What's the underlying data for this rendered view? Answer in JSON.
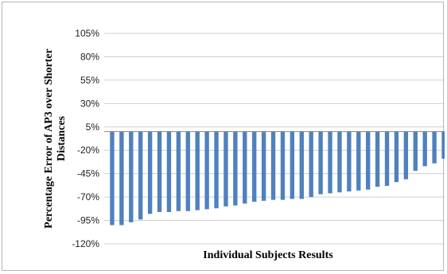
{
  "chart_data": {
    "type": "bar",
    "title": "",
    "xlabel": "Individual  Subjects Results",
    "ylabel": "Percentage Error of AP3 over Shorter Distances",
    "ylabel_lines": [
      "Percentage Error of AP3 over Shorter",
      "Distances"
    ],
    "ylim": [
      -120,
      105
    ],
    "yticks": [
      105,
      80,
      55,
      30,
      5,
      -20,
      -45,
      -70,
      -95,
      -120
    ],
    "ytick_labels": [
      "105%",
      "80%",
      "55%",
      "30%",
      "5%",
      "-20%",
      "-45%",
      "-70%",
      "-95%",
      "-120%"
    ],
    "grid": true,
    "legend": "none",
    "bar_color": "#4f81bd",
    "values": [
      -100,
      -100,
      -97,
      -94,
      -88,
      -86,
      -86,
      -85,
      -85,
      -84,
      -83,
      -82,
      -80,
      -79,
      -77,
      -75,
      -74,
      -73,
      -73,
      -72,
      -72,
      -70,
      -67,
      -66,
      -65,
      -64,
      -63,
      -62,
      -59,
      -58,
      -54,
      -51,
      -42,
      -37,
      -34,
      -29
    ]
  }
}
